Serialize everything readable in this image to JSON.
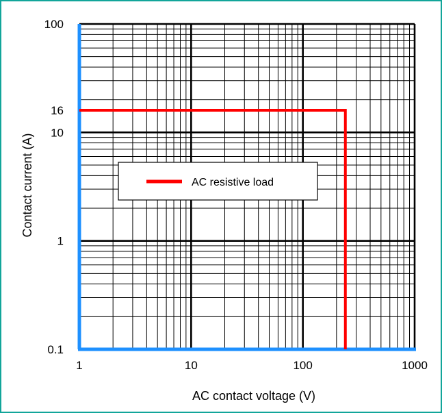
{
  "chart_data": {
    "type": "line",
    "xscale": "log",
    "yscale": "log",
    "xlim": [
      1,
      1000
    ],
    "ylim": [
      0.1,
      100
    ],
    "xlabel": "AC contact voltage (V)",
    "ylabel": "Contact current (A)",
    "xticks": [
      "1",
      "10",
      "100",
      "1000"
    ],
    "yticks": [
      "0.1",
      "1",
      "10",
      "100"
    ],
    "extra_yticks": [
      "16"
    ],
    "grid": true,
    "legend": {
      "position": "center-left",
      "entries": [
        "AC resistive load"
      ]
    },
    "series": [
      {
        "name": "AC resistive load",
        "color": "#ff0000",
        "points": [
          [
            1,
            16
          ],
          [
            240,
            16
          ],
          [
            240,
            0.1
          ]
        ]
      }
    ],
    "axis_color": "#1e90ff",
    "frame_color": "#12a59a"
  }
}
